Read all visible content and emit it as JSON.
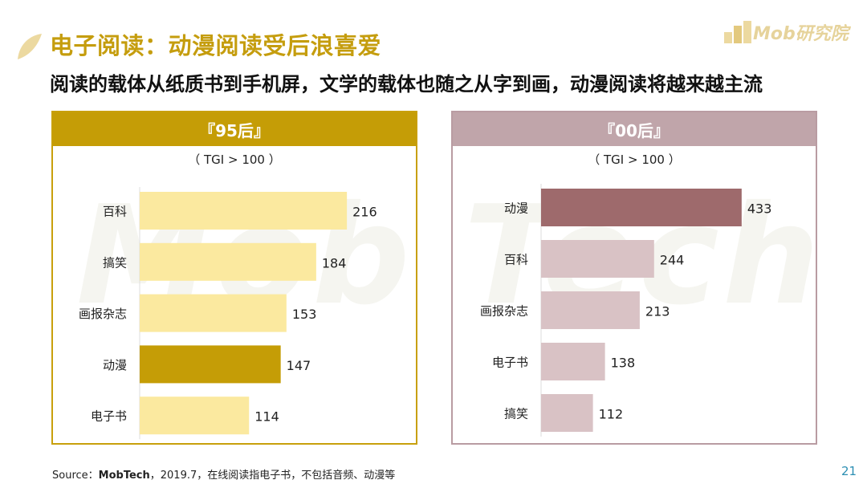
{
  "header": {
    "title": "电子阅读：动漫阅读受后浪喜爱",
    "subtitle": "阅读的载体从纸质书到手机屏，文学的载体也随之从字到画，动漫阅读将越来越主流"
  },
  "brand": {
    "name": "Mob研究院",
    "watermark": "Mob Tech"
  },
  "footer": {
    "source_label": "Source：",
    "source_name": "MobTech",
    "source_rest": "，2019.7，在线阅读指电子书，不包括音频、动漫等",
    "page_number": "21"
  },
  "chart_data": [
    {
      "type": "bar",
      "orientation": "horizontal",
      "title": "『95后』",
      "subtitle": "（ TGI > 100 ）",
      "categories": [
        "百科",
        "搞笑",
        "画报杂志",
        "动漫",
        "电子书"
      ],
      "values": [
        216,
        184,
        153,
        147,
        114
      ],
      "highlight": "动漫",
      "colors": {
        "normal": "#fbe99f",
        "highlight": "#c59d06",
        "header": "#c59d06",
        "border": "#c8a00c"
      }
    },
    {
      "type": "bar",
      "orientation": "horizontal",
      "title": "『00后』",
      "subtitle": "（ TGI > 100 ）",
      "categories": [
        "动漫",
        "百科",
        "画报杂志",
        "电子书",
        "搞笑"
      ],
      "values": [
        433,
        244,
        213,
        138,
        112
      ],
      "highlight": "动漫",
      "colors": {
        "normal": "#d9c2c5",
        "highlight": "#9e6a6c",
        "header": "#c0a5aa",
        "border": "#b99ca2"
      }
    }
  ]
}
